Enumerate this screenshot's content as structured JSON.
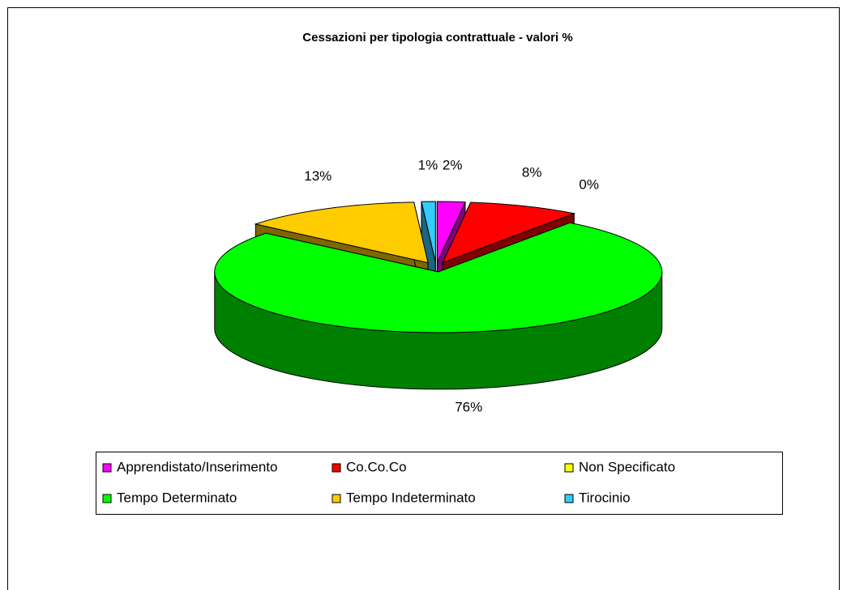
{
  "chart_data": {
    "type": "pie",
    "three_d": true,
    "exploded": true,
    "title": "Cessazioni per tipologia contrattuale - valori %",
    "categories": [
      "Apprendistato/Inserimento",
      "Co.Co.Co",
      "Non Specificato",
      "Tempo Determinato",
      "Tempo Indeterminato",
      "Tirocinio"
    ],
    "values": [
      2,
      8,
      0,
      76,
      13,
      1
    ],
    "value_labels": [
      "2%",
      "8%",
      "0%",
      "76%",
      "13%",
      "1%"
    ],
    "colors": [
      "#ff00ff",
      "#ff0000",
      "#ffff00",
      "#00ff00",
      "#ffcc00",
      "#33ccff"
    ],
    "legend": "bottom"
  }
}
